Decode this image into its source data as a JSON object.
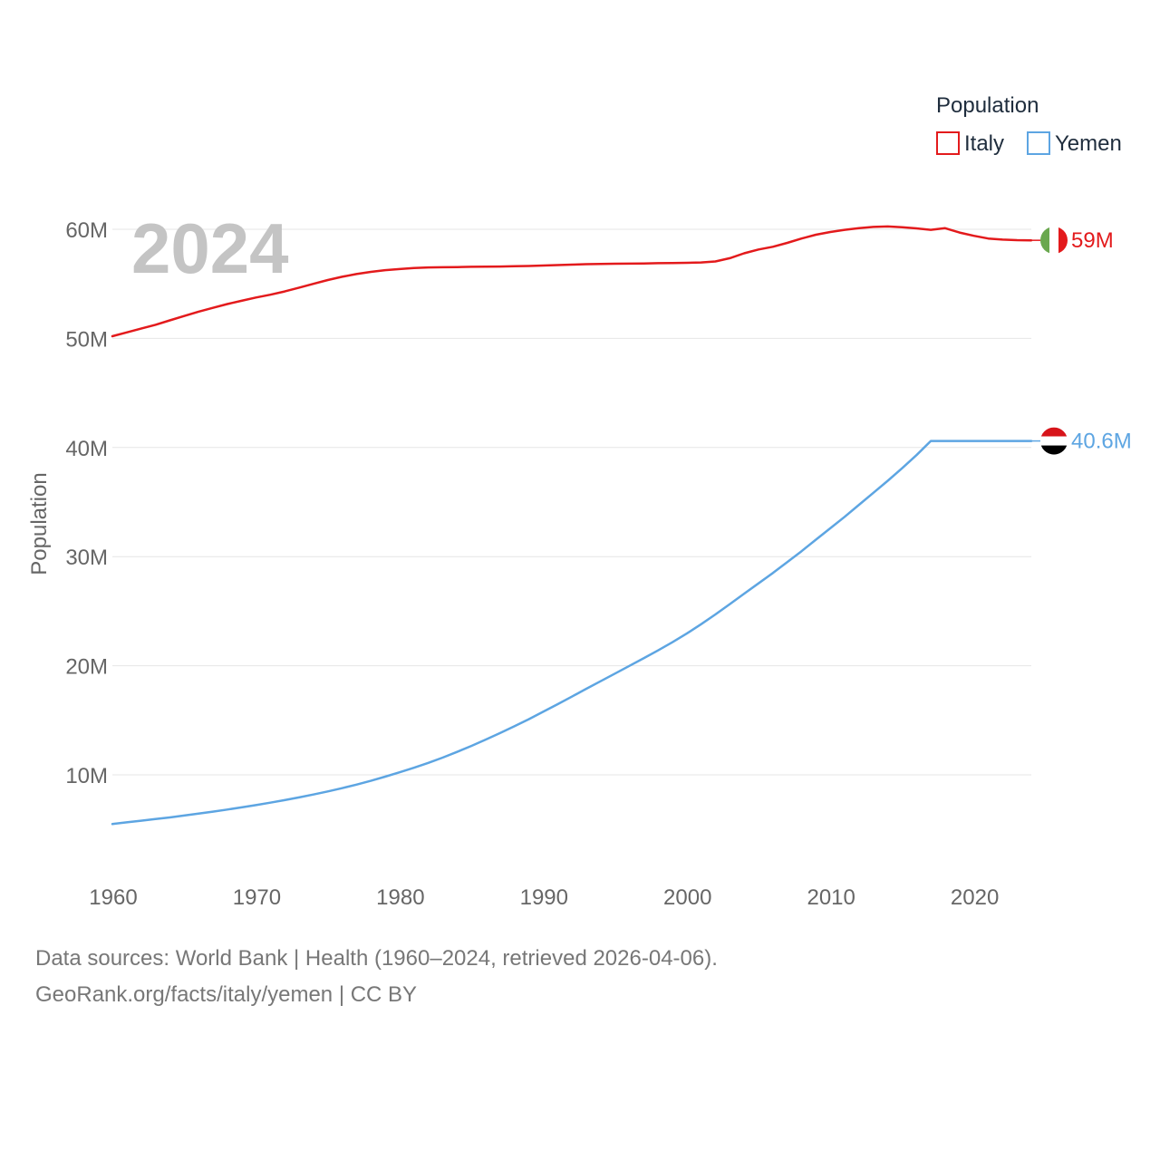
{
  "chart_data": {
    "type": "line",
    "title": "",
    "year_label": "2024",
    "xlabel": "",
    "ylabel": "Population",
    "xlim": [
      1960,
      2024
    ],
    "ylim": [
      0,
      65000000
    ],
    "x_ticks": [
      1960,
      1970,
      1980,
      1990,
      2000,
      2010,
      2020
    ],
    "x_tick_labels": [
      "1960",
      "1970",
      "1980",
      "1990",
      "2000",
      "2010",
      "2020"
    ],
    "y_ticks": [
      10000000,
      20000000,
      30000000,
      40000000,
      50000000,
      60000000
    ],
    "y_tick_labels": [
      "10M",
      "20M",
      "30M",
      "40M",
      "50M",
      "60M"
    ],
    "legend": {
      "title": "Population",
      "position": "top-right"
    },
    "series": [
      {
        "name": "Italy",
        "color": "#e31a1c",
        "end_label": "59M",
        "flag": "italy-flag-icon",
        "x": [
          1960,
          1961,
          1962,
          1963,
          1964,
          1965,
          1966,
          1967,
          1968,
          1969,
          1970,
          1971,
          1972,
          1973,
          1974,
          1975,
          1976,
          1977,
          1978,
          1979,
          1980,
          1981,
          1982,
          1983,
          1984,
          1985,
          1986,
          1987,
          1988,
          1989,
          1990,
          1991,
          1992,
          1993,
          1994,
          1995,
          1996,
          1997,
          1998,
          1999,
          2000,
          2001,
          2002,
          2003,
          2004,
          2005,
          2006,
          2007,
          2008,
          2009,
          2010,
          2011,
          2012,
          2013,
          2014,
          2015,
          2016,
          2017,
          2018,
          2019,
          2020,
          2021,
          2022,
          2023,
          2024
        ],
        "values": [
          50200000,
          50550000,
          50900000,
          51250000,
          51650000,
          52050000,
          52450000,
          52800000,
          53150000,
          53450000,
          53750000,
          54000000,
          54300000,
          54650000,
          55000000,
          55350000,
          55650000,
          55900000,
          56100000,
          56250000,
          56350000,
          56450000,
          56500000,
          56520000,
          56540000,
          56560000,
          56580000,
          56590000,
          56610000,
          56640000,
          56680000,
          56720000,
          56760000,
          56800000,
          56820000,
          56840000,
          56850000,
          56870000,
          56890000,
          56910000,
          56930000,
          56960000,
          57050000,
          57350000,
          57800000,
          58150000,
          58400000,
          58750000,
          59150000,
          59500000,
          59750000,
          59950000,
          60100000,
          60220000,
          60260000,
          60180000,
          60080000,
          59950000,
          60100000,
          59700000,
          59400000,
          59150000,
          59050000,
          59000000,
          58990000
        ]
      },
      {
        "name": "Yemen",
        "color": "#5da5e2",
        "end_label": "40.6M",
        "flag": "yemen-flag-icon",
        "x": [
          1960,
          1961,
          1962,
          1963,
          1964,
          1965,
          1966,
          1967,
          1968,
          1969,
          1970,
          1971,
          1972,
          1973,
          1974,
          1975,
          1976,
          1977,
          1978,
          1979,
          1980,
          1981,
          1982,
          1983,
          1984,
          1985,
          1986,
          1987,
          1988,
          1989,
          1990,
          1991,
          1992,
          1993,
          1994,
          1995,
          1996,
          1997,
          1998,
          1999,
          2000,
          2001,
          2002,
          2003,
          2004,
          2005,
          2006,
          2007,
          2008,
          2009,
          2010,
          2011,
          2012,
          2013,
          2014,
          2015,
          2016,
          2017,
          2018,
          2019,
          2020,
          2021,
          2022,
          2023,
          2024
        ],
        "values": [
          5500000,
          5650000,
          5800000,
          5950000,
          6100000,
          6270000,
          6450000,
          6630000,
          6820000,
          7020000,
          7230000,
          7450000,
          7680000,
          7930000,
          8200000,
          8480000,
          8780000,
          9100000,
          9450000,
          9830000,
          10230000,
          10650000,
          11100000,
          11580000,
          12100000,
          12650000,
          13230000,
          13830000,
          14450000,
          15100000,
          15780000,
          16470000,
          17170000,
          17880000,
          18580000,
          19280000,
          19980000,
          20680000,
          21400000,
          22150000,
          22950000,
          23800000,
          24700000,
          25650000,
          26600000,
          27550000,
          28500000,
          29500000,
          30500000,
          31550000,
          32600000,
          33650000,
          34750000,
          35850000,
          36950000,
          38100000,
          39300000,
          40600000,
          40600000,
          40600000,
          40600000,
          40600000,
          40600000,
          40600000,
          40600000
        ]
      }
    ]
  },
  "footer": {
    "line1": "Data sources: World Bank | Health (1960–2024, retrieved 2026-04-06).",
    "line2": "GeoRank.org/facts/italy/yemen | CC BY"
  }
}
